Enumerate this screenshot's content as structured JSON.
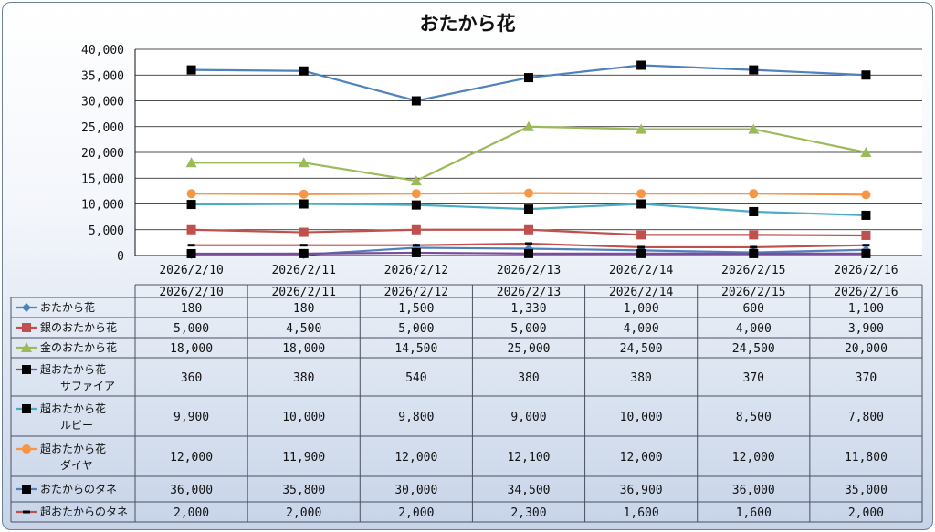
{
  "chart_data": {
    "type": "line",
    "title": "おたから花",
    "xlabel": "",
    "ylabel": "",
    "ylim": [
      0,
      40000
    ],
    "yticks": [
      "0",
      "5,000",
      "10,000",
      "15,000",
      "20,000",
      "25,000",
      "30,000",
      "35,000",
      "40,000"
    ],
    "grid": true,
    "legend": "data-table",
    "categories": [
      "2026/2/10",
      "2026/2/11",
      "2026/2/12",
      "2026/2/13",
      "2026/2/14",
      "2026/2/15",
      "2026/2/16"
    ],
    "series": [
      {
        "name": [
          "おたから花"
        ],
        "color": "#4f81bd",
        "marker": "diamond",
        "values": [
          180,
          180,
          1500,
          1330,
          1000,
          600,
          1100
        ],
        "labels": [
          "180",
          "180",
          "1,500",
          "1,330",
          "1,000",
          "600",
          "1,100"
        ]
      },
      {
        "name": [
          "銀のおたから花"
        ],
        "color": "#c0504d",
        "marker": "square",
        "values": [
          5000,
          4500,
          5000,
          5000,
          4000,
          4000,
          3900
        ],
        "labels": [
          "5,000",
          "4,500",
          "5,000",
          "5,000",
          "4,000",
          "4,000",
          "3,900"
        ]
      },
      {
        "name": [
          "金のおたから花"
        ],
        "color": "#9bbb59",
        "marker": "triangle",
        "values": [
          18000,
          18000,
          14500,
          25000,
          24500,
          24500,
          20000
        ],
        "labels": [
          "18,000",
          "18,000",
          "14,500",
          "25,000",
          "24,500",
          "24,500",
          "20,000"
        ]
      },
      {
        "name": [
          "超おたから花",
          "サファイア"
        ],
        "color": "#7a4d9a",
        "marker": "blacksquare",
        "values": [
          360,
          380,
          540,
          380,
          380,
          370,
          370
        ],
        "labels": [
          "360",
          "380",
          "540",
          "380",
          "380",
          "370",
          "370"
        ]
      },
      {
        "name": [
          "超おたから花",
          "ルビー"
        ],
        "color": "#4bacc6",
        "marker": "blacksquare",
        "values": [
          9900,
          10000,
          9800,
          9000,
          10000,
          8500,
          7800
        ],
        "labels": [
          "9,900",
          "10,000",
          "9,800",
          "9,000",
          "10,000",
          "8,500",
          "7,800"
        ]
      },
      {
        "name": [
          "超おたから花",
          "ダイヤ"
        ],
        "color": "#f79646",
        "marker": "circle",
        "values": [
          12000,
          11900,
          12000,
          12100,
          12000,
          12000,
          11800
        ],
        "labels": [
          "12,000",
          "11,900",
          "12,000",
          "12,100",
          "12,000",
          "12,000",
          "11,800"
        ]
      },
      {
        "name": [
          "おたからのタネ"
        ],
        "color": "#4f81bd",
        "marker": "blacksquare",
        "values": [
          36000,
          35800,
          30000,
          34500,
          36900,
          36000,
          35000
        ],
        "labels": [
          "36,000",
          "35,800",
          "30,000",
          "34,500",
          "36,900",
          "36,000",
          "35,000"
        ]
      },
      {
        "name": [
          "超おたからのタネ"
        ],
        "color": "#c0504d",
        "marker": "dash",
        "values": [
          2000,
          2000,
          2000,
          2300,
          1600,
          1600,
          2000
        ],
        "labels": [
          "2,000",
          "2,000",
          "2,000",
          "2,300",
          "1,600",
          "1,600",
          "2,000"
        ]
      }
    ]
  }
}
